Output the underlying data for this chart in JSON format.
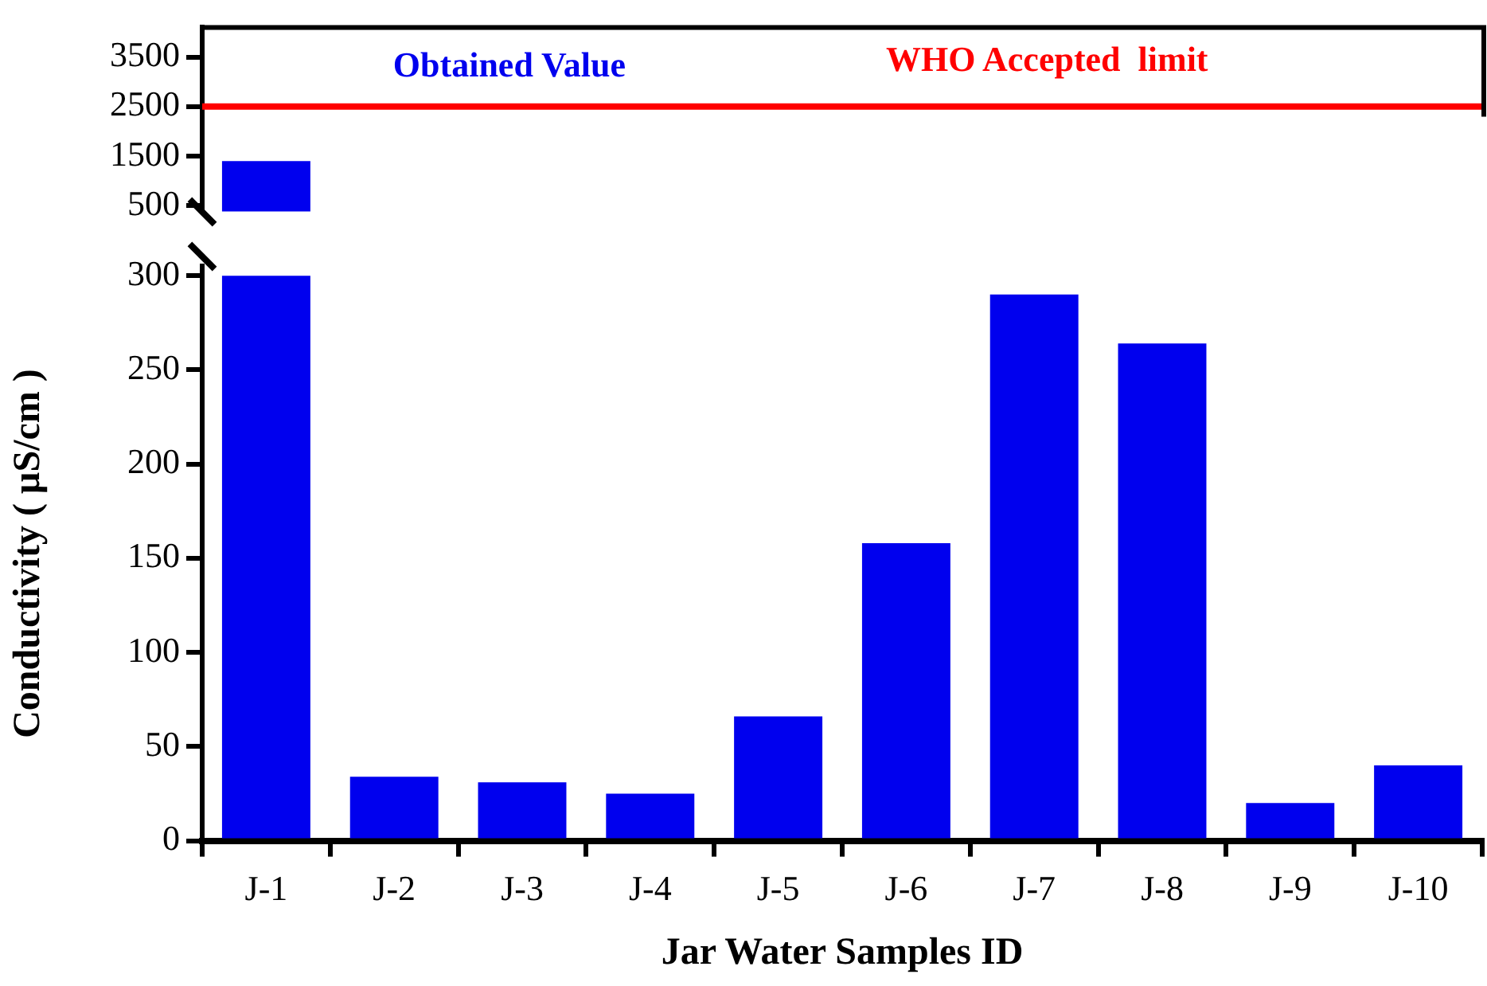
{
  "chart_data": [
    {
      "type": "bar",
      "categories": [
        null,
        null,
        null,
        null,
        null,
        null,
        null,
        null,
        null,
        null
      ],
      "series": [
        {
          "name": "Obtained Value",
          "color": "#0000ee",
          "values": [
            1400,
            null,
            null,
            null,
            null,
            null,
            null,
            null,
            null,
            null
          ]
        }
      ],
      "ylim": [
        380,
        4100
      ],
      "yticks": [
        500,
        1500,
        2500,
        3500
      ],
      "tick_labels": "y",
      "legend": "top",
      "ref_lines": [
        {
          "axis": "y",
          "value": 2500,
          "label": "WHO Accepted  limit",
          "color": "#ff0000"
        }
      ]
    },
    {
      "type": "bar",
      "categories": [
        "J-1",
        "J-2",
        "J-3",
        "J-4",
        "J-5",
        "J-6",
        "J-7",
        "J-8",
        "J-9",
        "J-10"
      ],
      "series": [
        {
          "color": "#0000ee",
          "values": [
            300,
            34,
            31,
            25,
            66,
            158,
            290,
            264,
            20,
            40
          ]
        }
      ],
      "ylim": [
        0,
        305
      ],
      "yticks": [
        0,
        50,
        100,
        150,
        200,
        250,
        300
      ],
      "xlabel": "Jar Water Samples ID",
      "ylabel": "Conductivity ( µS/cm )"
    }
  ]
}
